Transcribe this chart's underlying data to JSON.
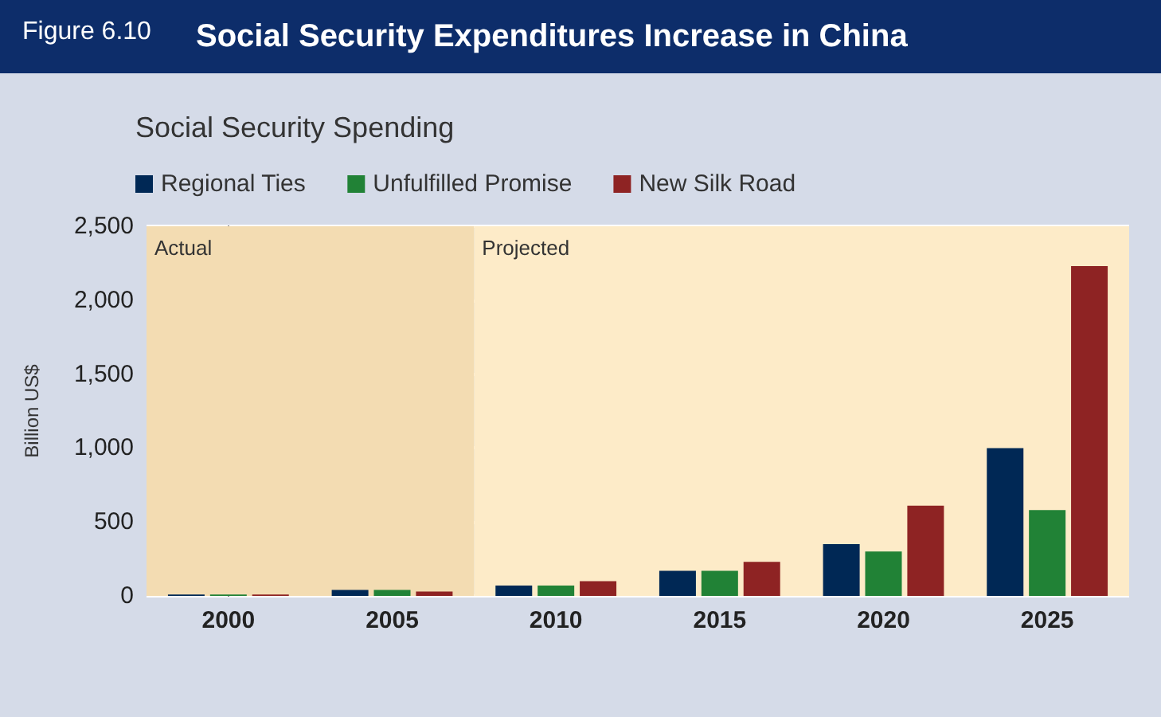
{
  "chart_data": {
    "type": "bar",
    "title": "Social Security Expenditures Increase in China",
    "subtitle": "Social Security Spending",
    "annotations": [
      "Figure 6.10"
    ],
    "ylabel": "Billion US$",
    "categories": [
      "2000",
      "2005",
      "2010",
      "2015",
      "2020",
      "2025"
    ],
    "series": [
      {
        "name": "Regional Ties",
        "color": "#002855",
        "values": [
          10,
          40,
          70,
          170,
          350,
          1000
        ]
      },
      {
        "name": "Unfulfilled Promise",
        "color": "#218236",
        "values": [
          10,
          40,
          70,
          170,
          300,
          580
        ]
      },
      {
        "name": "New Silk Road",
        "color": "#8e2323",
        "values": [
          10,
          30,
          100,
          230,
          610,
          2230
        ]
      }
    ],
    "ylim": [
      0,
      2500
    ],
    "yticks": [
      0,
      {
        "value": 500,
        "label": "500"
      },
      {
        "value": 1000,
        "label": "1,000"
      },
      {
        "value": 1500,
        "label": "1,500"
      },
      {
        "value": 2000,
        "label": "2,000"
      },
      {
        "value": 2500,
        "label": "2,500"
      }
    ],
    "bands": [
      {
        "axis": "x",
        "from": "2000",
        "to": "2005",
        "label": "Actual",
        "color": "#f3dcb2"
      },
      {
        "axis": "x",
        "from": "2010",
        "to": "2025",
        "label": "Projected",
        "color": "#fdebc8"
      }
    ],
    "grid": "y",
    "legend": "top left"
  }
}
